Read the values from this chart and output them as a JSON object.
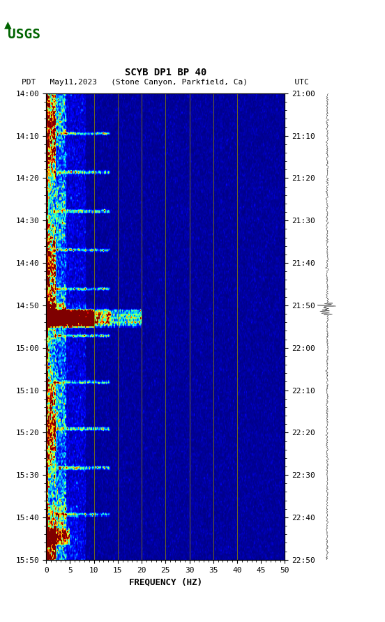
{
  "title_line1": "SCYB DP1 BP 40",
  "title_line2": "PDT   May11,2023   (Stone Canyon, Parkfield, Ca)          UTC",
  "xlabel": "FREQUENCY (HZ)",
  "freq_min": 0,
  "freq_max": 50,
  "freq_ticks": [
    0,
    5,
    10,
    15,
    20,
    25,
    30,
    35,
    40,
    45,
    50
  ],
  "time_start_pdt": "14:00",
  "time_end_pdt": "15:50",
  "time_start_utc": "21:00",
  "time_end_utc": "22:50",
  "time_labels_pdt": [
    "14:00",
    "14:10",
    "14:20",
    "14:30",
    "14:40",
    "14:50",
    "15:00",
    "15:10",
    "15:20",
    "15:30",
    "15:40",
    "15:50"
  ],
  "time_labels_utc": [
    "21:00",
    "21:10",
    "21:20",
    "21:30",
    "21:40",
    "21:50",
    "22:00",
    "22:10",
    "22:20",
    "22:30",
    "22:40",
    "22:50"
  ],
  "vert_line_freqs": [
    10,
    15,
    20,
    25,
    30,
    35,
    40
  ],
  "vert_line_color": "#8B8000",
  "background_color": "#ffffff",
  "spectrogram_bg": "#00008B",
  "low_freq_high_power_color": "#FF0000",
  "usgs_logo_color": "#006400",
  "fig_width": 5.52,
  "fig_height": 8.92
}
